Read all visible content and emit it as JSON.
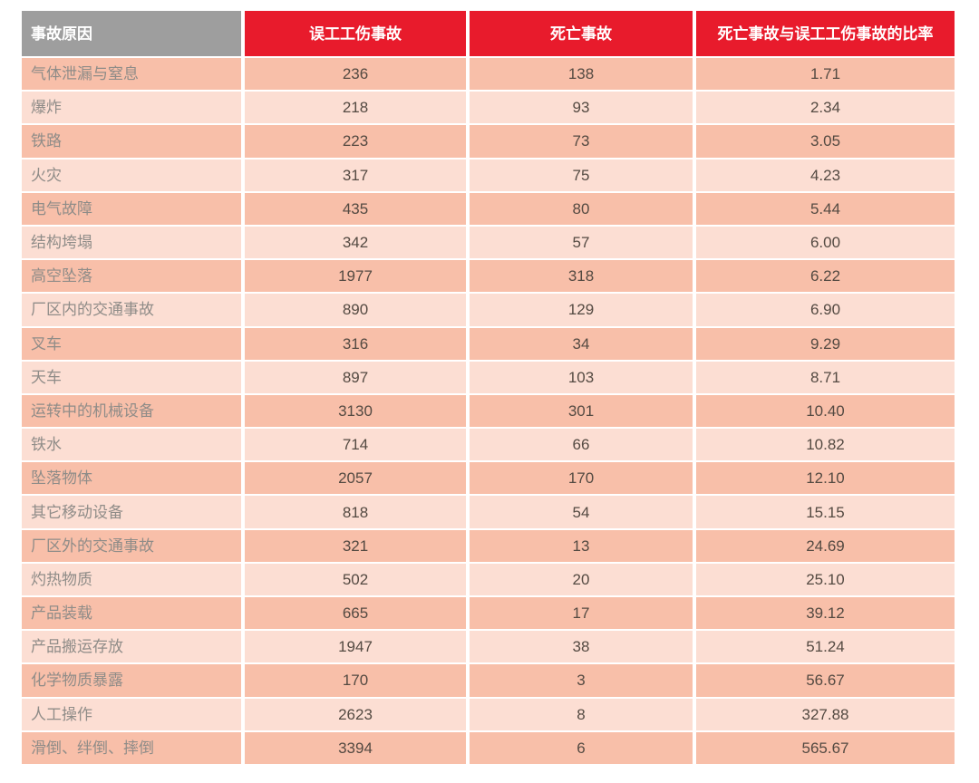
{
  "colors": {
    "page_bg": "#ffffff",
    "header_gray": "#9e9e9e",
    "header_red": "#e81b2c",
    "header_text": "#ffffff",
    "row_dark": "#f8bfa9",
    "row_light": "#fcded3",
    "cause_text": "#8f8c88",
    "number_text": "#544a42"
  },
  "table": {
    "headers": [
      {
        "label": "事故原因"
      },
      {
        "label": "误工工伤事故"
      },
      {
        "label": "死亡事故"
      },
      {
        "label": "死亡事故与误工工伤事故的比率"
      }
    ],
    "rows": [
      {
        "cause": "气体泄漏与窒息",
        "lost_time": "236",
        "fatal": "138",
        "ratio": "1.71"
      },
      {
        "cause": "爆炸",
        "lost_time": "218",
        "fatal": "93",
        "ratio": "2.34"
      },
      {
        "cause": "铁路",
        "lost_time": "223",
        "fatal": "73",
        "ratio": "3.05"
      },
      {
        "cause": "火灾",
        "lost_time": "317",
        "fatal": "75",
        "ratio": "4.23"
      },
      {
        "cause": "电气故障",
        "lost_time": "435",
        "fatal": "80",
        "ratio": "5.44"
      },
      {
        "cause": "结构垮塌",
        "lost_time": "342",
        "fatal": "57",
        "ratio": "6.00"
      },
      {
        "cause": "高空坠落",
        "lost_time": "1977",
        "fatal": "318",
        "ratio": "6.22"
      },
      {
        "cause": "厂区内的交通事故",
        "lost_time": "890",
        "fatal": "129",
        "ratio": "6.90"
      },
      {
        "cause": "叉车",
        "lost_time": "316",
        "fatal": "34",
        "ratio": "9.29"
      },
      {
        "cause": "天车",
        "lost_time": "897",
        "fatal": "103",
        "ratio": "8.71"
      },
      {
        "cause": "运转中的机械设备",
        "lost_time": "3130",
        "fatal": "301",
        "ratio": "10.40"
      },
      {
        "cause": "铁水",
        "lost_time": "714",
        "fatal": "66",
        "ratio": "10.82"
      },
      {
        "cause": "坠落物体",
        "lost_time": "2057",
        "fatal": "170",
        "ratio": "12.10"
      },
      {
        "cause": "其它移动设备",
        "lost_time": "818",
        "fatal": "54",
        "ratio": "15.15"
      },
      {
        "cause": "厂区外的交通事故",
        "lost_time": "321",
        "fatal": "13",
        "ratio": "24.69"
      },
      {
        "cause": "灼热物质",
        "lost_time": "502",
        "fatal": "20",
        "ratio": "25.10"
      },
      {
        "cause": "产品装载",
        "lost_time": "665",
        "fatal": "17",
        "ratio": "39.12"
      },
      {
        "cause": "产品搬运存放",
        "lost_time": "1947",
        "fatal": "38",
        "ratio": "51.24"
      },
      {
        "cause": "化学物质暴露",
        "lost_time": "170",
        "fatal": "3",
        "ratio": "56.67"
      },
      {
        "cause": "人工操作",
        "lost_time": "2623",
        "fatal": "8",
        "ratio": "327.88"
      },
      {
        "cause": "滑倒、绊倒、摔倒",
        "lost_time": "3394",
        "fatal": "6",
        "ratio": "565.67"
      }
    ]
  },
  "chart_data": {
    "type": "table",
    "columns": [
      "事故原因",
      "误工工伤事故",
      "死亡事故",
      "死亡事故与误工工伤事故的比率"
    ],
    "rows": [
      [
        "气体泄漏与窒息",
        236,
        138,
        1.71
      ],
      [
        "爆炸",
        218,
        93,
        2.34
      ],
      [
        "铁路",
        223,
        73,
        3.05
      ],
      [
        "火灾",
        317,
        75,
        4.23
      ],
      [
        "电气故障",
        435,
        80,
        5.44
      ],
      [
        "结构垮塌",
        342,
        57,
        6.0
      ],
      [
        "高空坠落",
        1977,
        318,
        6.22
      ],
      [
        "厂区内的交通事故",
        890,
        129,
        6.9
      ],
      [
        "叉车",
        316,
        34,
        9.29
      ],
      [
        "天车",
        897,
        103,
        8.71
      ],
      [
        "运转中的机械设备",
        3130,
        301,
        10.4
      ],
      [
        "铁水",
        714,
        66,
        10.82
      ],
      [
        "坠落物体",
        2057,
        170,
        12.1
      ],
      [
        "其它移动设备",
        818,
        54,
        15.15
      ],
      [
        "厂区外的交通事故",
        321,
        13,
        24.69
      ],
      [
        "灼热物质",
        502,
        20,
        25.1
      ],
      [
        "产品装载",
        665,
        17,
        39.12
      ],
      [
        "产品搬运存放",
        1947,
        38,
        51.24
      ],
      [
        "化学物质暴露",
        170,
        3,
        56.67
      ],
      [
        "人工操作",
        2623,
        8,
        327.88
      ],
      [
        "滑倒、绊倒、摔倒",
        3394,
        6,
        565.67
      ]
    ]
  }
}
